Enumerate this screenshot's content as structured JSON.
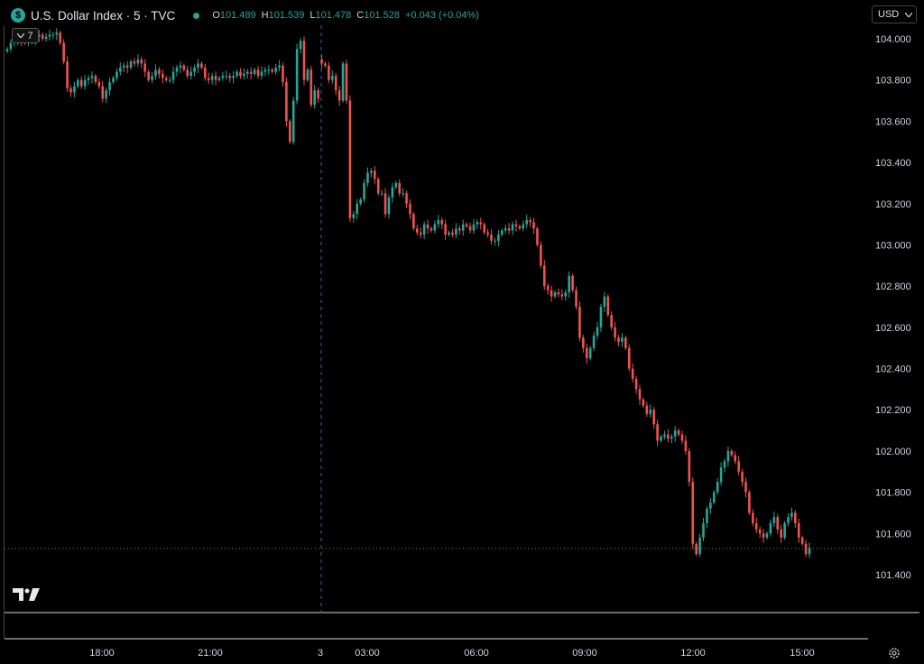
{
  "header": {
    "symbol_badge": "$",
    "title": "U.S. Dollar Index · 5 · TVC",
    "ohlc": [
      {
        "key": "O",
        "value": "101.489"
      },
      {
        "key": "H",
        "value": "101.539"
      },
      {
        "key": "L",
        "value": "101.478"
      },
      {
        "key": "C",
        "value": "101.528"
      },
      {
        "key": "",
        "value": "+0.043 (+0.04%)"
      }
    ],
    "indicator_count": "7"
  },
  "currency": "USD",
  "colors": {
    "up": "#26a69a",
    "down": "#ef5350",
    "background": "#000000",
    "text": "#d1d4dc",
    "session_line": "#3f5ea8",
    "last_price_line": "#26a69a"
  },
  "icons": [
    "tradingview-logo-icon",
    "settings-gear-icon",
    "chevron-down-icon",
    "dollar-sign-icon"
  ],
  "chart_data": {
    "type": "candlestick",
    "title": "U.S. Dollar Index · 5 · TVC",
    "ylim": [
      101.3,
      104.1
    ],
    "y_ticks": [
      "104.000",
      "103.800",
      "103.600",
      "103.400",
      "103.200",
      "103.000",
      "102.800",
      "102.600",
      "102.400",
      "102.200",
      "102.000",
      "101.800",
      "101.600",
      "101.400"
    ],
    "x_ticks": [
      "18:00",
      "21:00",
      "3",
      "03:00",
      "06:00",
      "09:00",
      "12:00",
      "15:00"
    ],
    "session_break": "3",
    "last_price": 101.528,
    "gaps_after_index": [
      88
    ],
    "closes": [
      103.95,
      103.98,
      103.99,
      104.0,
      103.99,
      103.98,
      104.01,
      103.99,
      104.01,
      104.02,
      104.0,
      104.01,
      104.02,
      104.02,
      104.03,
      103.98,
      103.89,
      103.76,
      103.74,
      103.77,
      103.8,
      103.77,
      103.8,
      103.81,
      103.82,
      103.79,
      103.77,
      103.71,
      103.75,
      103.79,
      103.81,
      103.84,
      103.86,
      103.87,
      103.86,
      103.89,
      103.88,
      103.9,
      103.88,
      103.84,
      103.8,
      103.82,
      103.85,
      103.83,
      103.81,
      103.8,
      103.8,
      103.84,
      103.86,
      103.87,
      103.85,
      103.82,
      103.84,
      103.86,
      103.88,
      103.86,
      103.81,
      103.8,
      103.82,
      103.8,
      103.81,
      103.82,
      103.82,
      103.81,
      103.82,
      103.84,
      103.82,
      103.83,
      103.84,
      103.83,
      103.85,
      103.82,
      103.84,
      103.85,
      103.85,
      103.84,
      103.86,
      103.87,
      103.79,
      103.6,
      103.5,
      103.7,
      103.95,
      103.99,
      103.8,
      103.85,
      103.68,
      103.75,
      103.71,
      103.88,
      103.87,
      103.8,
      103.82,
      103.75,
      103.7,
      103.88,
      103.7,
      103.13,
      103.15,
      103.2,
      103.22,
      103.3,
      103.35,
      103.36,
      103.32,
      103.25,
      103.25,
      103.15,
      103.23,
      103.28,
      103.3,
      103.25,
      103.25,
      103.2,
      103.15,
      103.08,
      103.06,
      103.05,
      103.1,
      103.08,
      103.07,
      103.1,
      103.12,
      103.1,
      103.05,
      103.06,
      103.05,
      103.08,
      103.07,
      103.1,
      103.09,
      103.07,
      103.1,
      103.11,
      103.1,
      103.06,
      103.05,
      103.02,
      103.02,
      103.05,
      103.07,
      103.08,
      103.07,
      103.1,
      103.09,
      103.08,
      103.1,
      103.12,
      103.11,
      103.08,
      103.0,
      102.9,
      102.8,
      102.78,
      102.75,
      102.77,
      102.76,
      102.75,
      102.77,
      102.85,
      102.78,
      102.7,
      102.55,
      102.5,
      102.45,
      102.5,
      102.56,
      102.6,
      102.7,
      102.75,
      102.66,
      102.6,
      102.55,
      102.53,
      102.55,
      102.5,
      102.4,
      102.35,
      102.3,
      102.25,
      102.22,
      102.18,
      102.2,
      102.13,
      102.05,
      102.07,
      102.08,
      102.06,
      102.07,
      102.1,
      102.08,
      102.05,
      102.0,
      101.85,
      101.55,
      101.5,
      101.58,
      101.65,
      101.72,
      101.75,
      101.8,
      101.85,
      101.92,
      101.95,
      102.0,
      101.98,
      101.95,
      101.9,
      101.85,
      101.8,
      101.7,
      101.65,
      101.62,
      101.6,
      101.58,
      101.6,
      101.65,
      101.68,
      101.62,
      101.58,
      101.65,
      101.68,
      101.7,
      101.65,
      101.58,
      101.55,
      101.5,
      101.53
    ]
  }
}
